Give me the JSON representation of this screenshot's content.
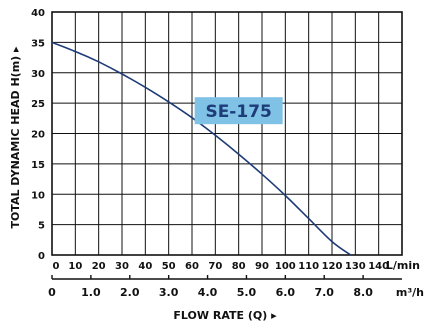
{
  "chart_data": {
    "type": "line",
    "title": "",
    "ylabel": "TOTAL DYNAMIC HEAD H(m)",
    "xlabel": "FLOW RATE (Q)",
    "ylim": [
      0,
      40
    ],
    "y_ticks": [
      "0",
      "5",
      "10",
      "15",
      "20",
      "25",
      "30",
      "35",
      "40"
    ],
    "grid": true,
    "x_axis_lmin": {
      "range": [
        0,
        150
      ],
      "ticks": [
        "0",
        "10",
        "20",
        "30",
        "40",
        "50",
        "60",
        "70",
        "80",
        "90",
        "100",
        "110",
        "120",
        "130",
        "140"
      ],
      "unit": "L/min"
    },
    "x_axis_m3h": {
      "range": [
        0,
        9.0
      ],
      "ticks": [
        "0",
        "1.0",
        "2.0",
        "3.0",
        "4.0",
        "5.0",
        "6.0",
        "7.0",
        "8.0"
      ],
      "tick_values": [
        0,
        1.0,
        2.0,
        3.0,
        4.0,
        5.0,
        6.0,
        7.0,
        8.0
      ],
      "unit": "m³/h"
    },
    "series": [
      {
        "name": "SE-175",
        "x_lmin": [
          0,
          10,
          20,
          30,
          40,
          50,
          60,
          70,
          80,
          90,
          100,
          110,
          120,
          128
        ],
        "y": [
          35,
          33.5,
          31.8,
          29.8,
          27.6,
          25.2,
          22.6,
          19.7,
          16.6,
          13.3,
          9.8,
          6.0,
          2.2,
          0
        ]
      }
    ],
    "label_color": "#7fc2e6",
    "label_text_color": "#1e3c78",
    "curve_color": "#1e3c78"
  }
}
